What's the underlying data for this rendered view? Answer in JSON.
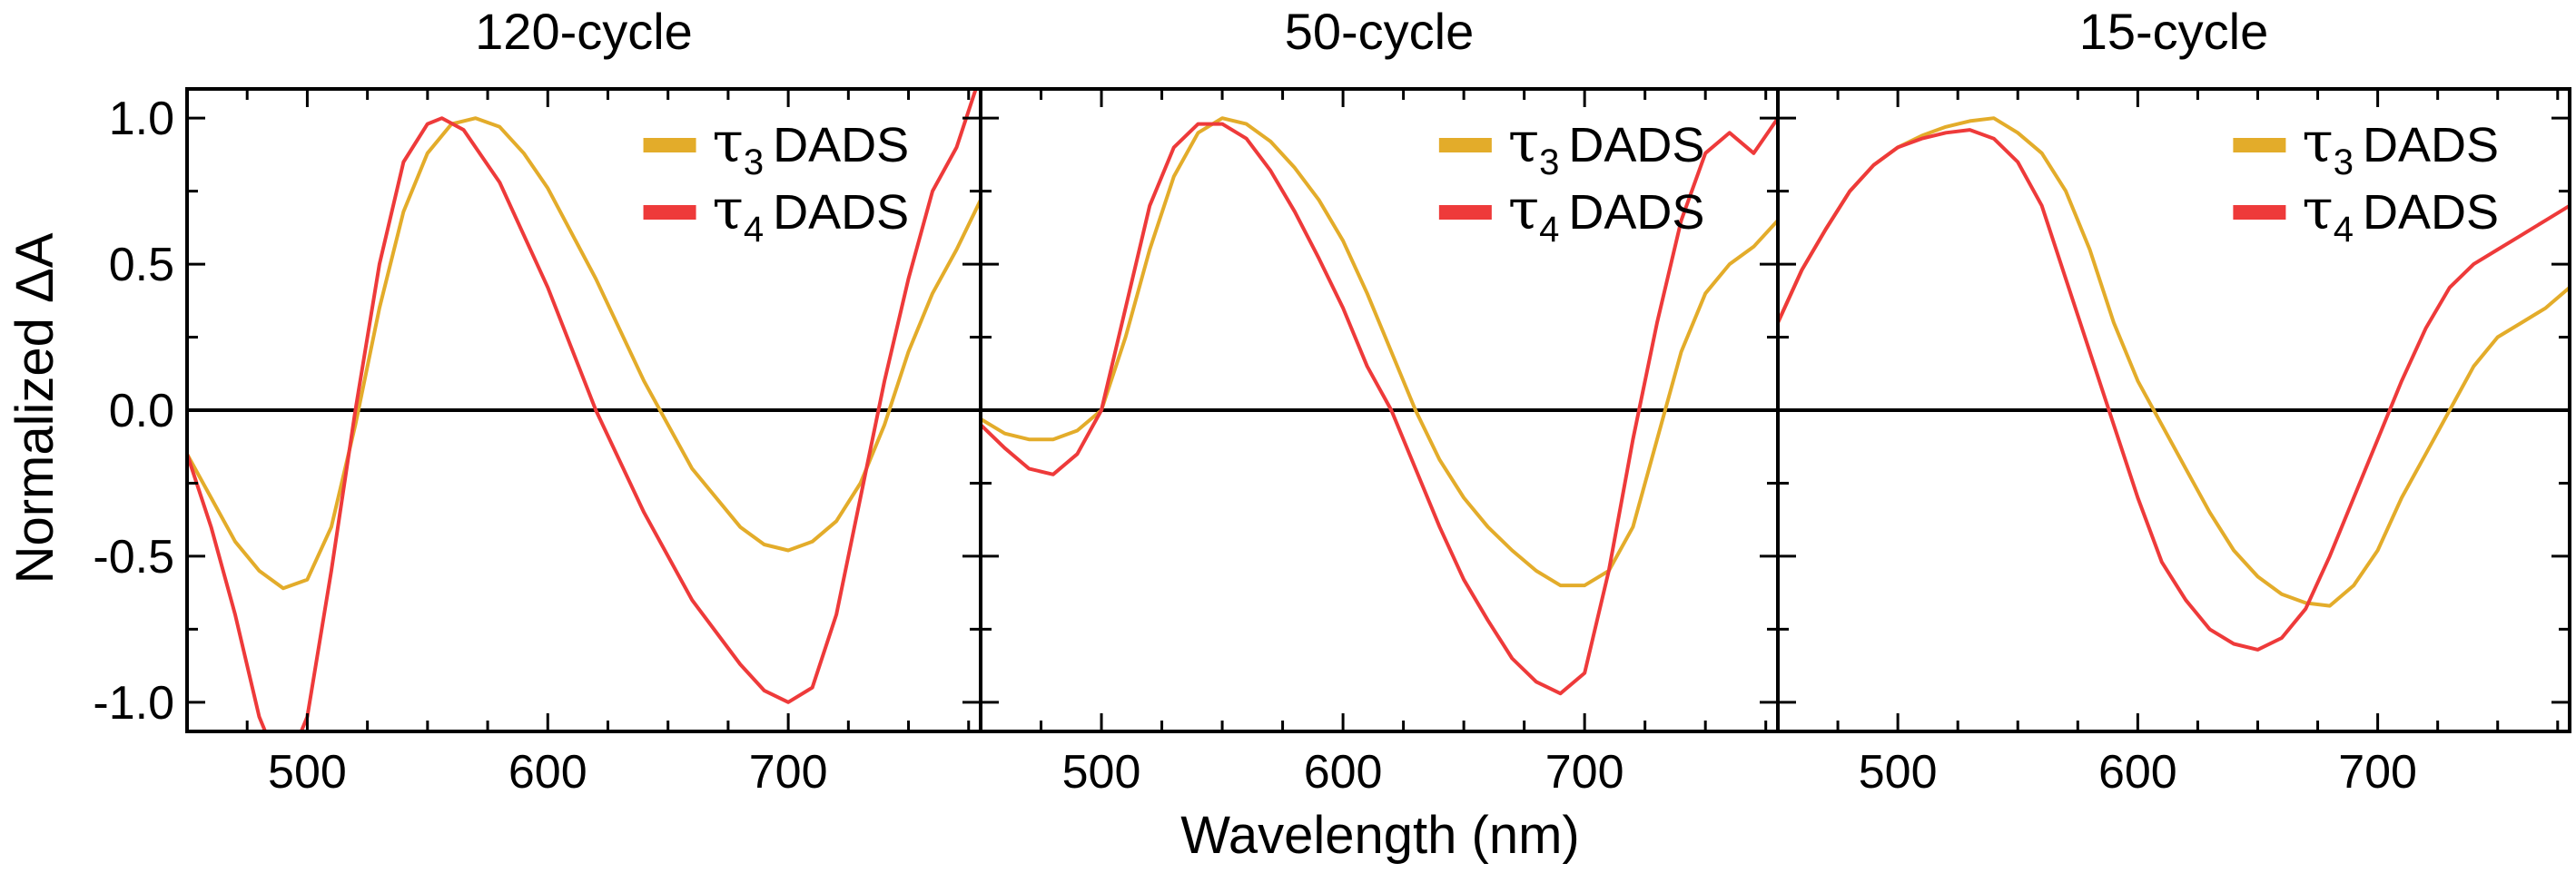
{
  "colors": {
    "tau3": "#E3AC2A",
    "tau4": "#EE3A3A",
    "axis": "#000000"
  },
  "figure": {
    "ylabel": "Normalized ΔA",
    "xlabel": "Wavelength (nm)"
  },
  "chart_data": [
    {
      "type": "line",
      "title": "120-cycle",
      "xlim": [
        450,
        780
      ],
      "ylim": [
        -1.1,
        1.1
      ],
      "xticks": [
        500,
        600,
        700
      ],
      "yticks": [
        -1.0,
        -0.5,
        0.0,
        0.5,
        1.0
      ],
      "ytick_labels": [
        "-1.0",
        "-0.5",
        "0.0",
        "0.5",
        "1.0"
      ],
      "zero_line": true,
      "legend_position": "top-right",
      "series": [
        {
          "name": "τ3 DADS",
          "name_base": "τ",
          "name_sub": "3",
          "name_suffix": "DADS",
          "color": "#E3AC2A",
          "x": [
            450,
            460,
            470,
            480,
            490,
            500,
            510,
            520,
            530,
            540,
            550,
            560,
            570,
            580,
            590,
            600,
            620,
            640,
            660,
            680,
            690,
            700,
            710,
            720,
            730,
            740,
            750,
            760,
            770,
            780
          ],
          "y": [
            -0.15,
            -0.3,
            -0.45,
            -0.55,
            -0.61,
            -0.58,
            -0.4,
            -0.05,
            0.35,
            0.68,
            0.88,
            0.98,
            1.0,
            0.97,
            0.88,
            0.76,
            0.45,
            0.1,
            -0.2,
            -0.4,
            -0.46,
            -0.48,
            -0.45,
            -0.38,
            -0.25,
            -0.05,
            0.2,
            0.4,
            0.55,
            0.72
          ]
        },
        {
          "name": "τ4 DADS",
          "name_base": "τ",
          "name_sub": "4",
          "name_suffix": "DADS",
          "color": "#EE3A3A",
          "x": [
            450,
            460,
            470,
            480,
            490,
            500,
            510,
            520,
            530,
            540,
            550,
            556,
            565,
            580,
            600,
            620,
            640,
            660,
            680,
            690,
            700,
            710,
            720,
            730,
            740,
            750,
            760,
            770,
            780
          ],
          "y": [
            -0.15,
            -0.4,
            -0.7,
            -1.05,
            -1.25,
            -1.05,
            -0.55,
            0.0,
            0.5,
            0.85,
            0.98,
            1.0,
            0.96,
            0.78,
            0.42,
            0.0,
            -0.35,
            -0.65,
            -0.87,
            -0.96,
            -1.0,
            -0.95,
            -0.7,
            -0.3,
            0.1,
            0.45,
            0.75,
            0.9,
            1.15
          ]
        }
      ]
    },
    {
      "type": "line",
      "title": "50-cycle",
      "xlim": [
        450,
        780
      ],
      "ylim": [
        -1.1,
        1.1
      ],
      "xticks": [
        500,
        600,
        700
      ],
      "yticks": [
        -1.0,
        -0.5,
        0.0,
        0.5,
        1.0
      ],
      "zero_line": true,
      "legend_position": "top-right",
      "series": [
        {
          "name": "τ3 DADS",
          "name_base": "τ",
          "name_sub": "3",
          "name_suffix": "DADS",
          "color": "#E3AC2A",
          "x": [
            450,
            460,
            470,
            480,
            490,
            500,
            510,
            520,
            530,
            540,
            550,
            560,
            570,
            580,
            590,
            600,
            610,
            620,
            630,
            640,
            650,
            660,
            670,
            680,
            690,
            700,
            710,
            720,
            730,
            740,
            750,
            760,
            770,
            780
          ],
          "y": [
            -0.03,
            -0.08,
            -0.1,
            -0.1,
            -0.07,
            0.0,
            0.25,
            0.55,
            0.8,
            0.95,
            1.0,
            0.98,
            0.92,
            0.83,
            0.72,
            0.58,
            0.4,
            0.2,
            0.0,
            -0.17,
            -0.3,
            -0.4,
            -0.48,
            -0.55,
            -0.6,
            -0.6,
            -0.55,
            -0.4,
            -0.1,
            0.2,
            0.4,
            0.5,
            0.56,
            0.65
          ]
        },
        {
          "name": "τ4 DADS",
          "name_base": "τ",
          "name_sub": "4",
          "name_suffix": "DADS",
          "color": "#EE3A3A",
          "x": [
            450,
            460,
            470,
            480,
            490,
            500,
            510,
            520,
            530,
            540,
            550,
            560,
            570,
            580,
            590,
            600,
            610,
            620,
            630,
            640,
            650,
            660,
            670,
            680,
            690,
            700,
            710,
            720,
            730,
            740,
            750,
            760,
            770,
            780
          ],
          "y": [
            -0.05,
            -0.13,
            -0.2,
            -0.22,
            -0.15,
            0.0,
            0.35,
            0.7,
            0.9,
            0.98,
            0.98,
            0.93,
            0.82,
            0.68,
            0.52,
            0.35,
            0.15,
            0.0,
            -0.2,
            -0.4,
            -0.58,
            -0.72,
            -0.85,
            -0.93,
            -0.97,
            -0.9,
            -0.55,
            -0.1,
            0.3,
            0.65,
            0.88,
            0.95,
            0.88,
            1.0
          ]
        }
      ]
    },
    {
      "type": "line",
      "title": "15-cycle",
      "xlim": [
        450,
        780
      ],
      "ylim": [
        -1.1,
        1.1
      ],
      "xticks": [
        500,
        600,
        700
      ],
      "yticks": [
        -1.0,
        -0.5,
        0.0,
        0.5,
        1.0
      ],
      "zero_line": true,
      "legend_position": "top-right",
      "series": [
        {
          "name": "τ3 DADS",
          "name_base": "τ",
          "name_sub": "3",
          "name_suffix": "DADS",
          "color": "#E3AC2A",
          "x": [
            450,
            460,
            470,
            480,
            490,
            500,
            510,
            520,
            530,
            540,
            550,
            560,
            570,
            580,
            590,
            600,
            610,
            620,
            630,
            640,
            650,
            660,
            670,
            680,
            690,
            700,
            710,
            720,
            730,
            740,
            750,
            760,
            770,
            780
          ],
          "y": [
            0.3,
            0.48,
            0.62,
            0.75,
            0.84,
            0.9,
            0.94,
            0.97,
            0.99,
            1.0,
            0.95,
            0.88,
            0.75,
            0.55,
            0.3,
            0.1,
            -0.05,
            -0.2,
            -0.35,
            -0.48,
            -0.57,
            -0.63,
            -0.66,
            -0.67,
            -0.6,
            -0.48,
            -0.3,
            -0.15,
            0.0,
            0.15,
            0.25,
            0.3,
            0.35,
            0.42
          ]
        },
        {
          "name": "τ4 DADS",
          "name_base": "τ",
          "name_sub": "4",
          "name_suffix": "DADS",
          "color": "#EE3A3A",
          "x": [
            450,
            460,
            470,
            480,
            490,
            500,
            510,
            520,
            530,
            540,
            550,
            560,
            570,
            580,
            590,
            600,
            610,
            620,
            630,
            640,
            650,
            660,
            670,
            680,
            690,
            700,
            710,
            720,
            730,
            740,
            750,
            760,
            770,
            780
          ],
          "y": [
            0.3,
            0.48,
            0.62,
            0.75,
            0.84,
            0.9,
            0.93,
            0.95,
            0.96,
            0.93,
            0.85,
            0.7,
            0.45,
            0.2,
            -0.05,
            -0.3,
            -0.52,
            -0.65,
            -0.75,
            -0.8,
            -0.82,
            -0.78,
            -0.68,
            -0.5,
            -0.3,
            -0.1,
            0.1,
            0.28,
            0.42,
            0.5,
            0.55,
            0.6,
            0.65,
            0.7
          ]
        }
      ]
    }
  ]
}
